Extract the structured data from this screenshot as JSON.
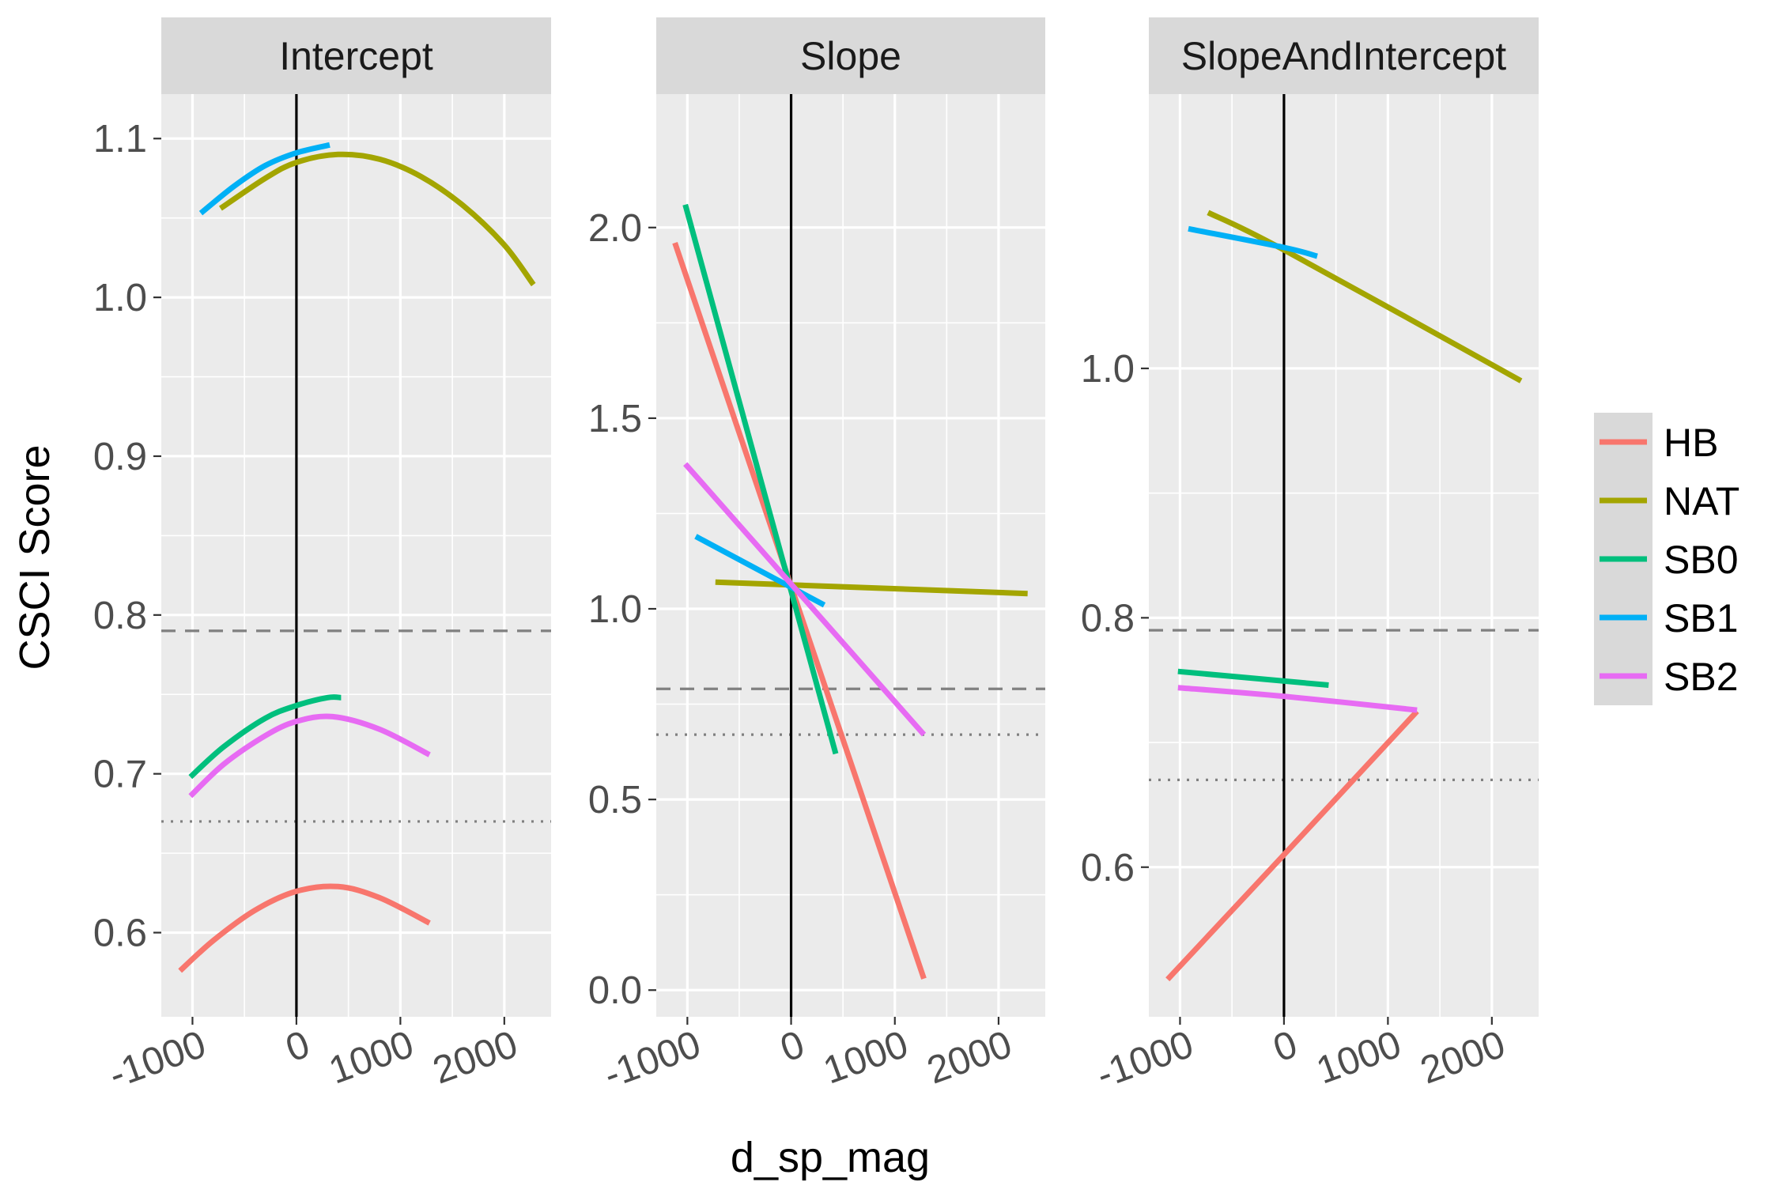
{
  "chart_data": {
    "type": "line",
    "xlabel": "d_sp_mag",
    "ylabel": "CSCI Score",
    "grid": true,
    "legend_position": "right",
    "x_ticks": [
      -1000,
      0,
      1000,
      2000
    ],
    "x_tick_labels": [
      "-1000",
      "0",
      "1000",
      "2000"
    ],
    "legend": [
      {
        "name": "HB",
        "color": "#F8766D"
      },
      {
        "name": "NAT",
        "color": "#A3A500"
      },
      {
        "name": "SB0",
        "color": "#00BF7D"
      },
      {
        "name": "SB1",
        "color": "#00B0F6"
      },
      {
        "name": "SB2",
        "color": "#E76BF3"
      }
    ],
    "reference_lines": {
      "vertical_x": 0,
      "dashed_y": 0.79,
      "dotted_y": 0.67
    },
    "panels": [
      {
        "title": "Intercept",
        "xlim": [
          -1300,
          2450
        ],
        "ylim": [
          0.547,
          1.128
        ],
        "y_ticks": [
          0.6,
          0.7,
          0.8,
          0.9,
          1.0,
          1.1
        ],
        "y_tick_labels": [
          "0.6",
          "0.7",
          "0.8",
          "0.9",
          "1.0",
          "1.1"
        ],
        "series": [
          {
            "name": "HB",
            "x": [
              -1120,
              -800,
              -400,
              0,
              400,
              800,
              1280
            ],
            "y": [
              0.576,
              0.595,
              0.614,
              0.626,
              0.629,
              0.622,
              0.606
            ]
          },
          {
            "name": "NAT",
            "x": [
              -730,
              -300,
              0,
              400,
              800,
              1200,
              1600,
              2000,
              2280
            ],
            "y": [
              1.056,
              1.075,
              1.085,
              1.09,
              1.087,
              1.076,
              1.058,
              1.033,
              1.008
            ]
          },
          {
            "name": "SB0",
            "x": [
              -1020,
              -700,
              -300,
              0,
              300,
              430
            ],
            "y": [
              0.698,
              0.717,
              0.735,
              0.743,
              0.748,
              0.748
            ]
          },
          {
            "name": "SB1",
            "x": [
              -920,
              -600,
              -300,
              0,
              320
            ],
            "y": [
              1.053,
              1.07,
              1.083,
              1.091,
              1.096
            ]
          },
          {
            "name": "SB2",
            "x": [
              -1020,
              -700,
              -300,
              0,
              350,
              800,
              1280
            ],
            "y": [
              0.686,
              0.706,
              0.724,
              0.733,
              0.736,
              0.728,
              0.712
            ]
          }
        ]
      },
      {
        "title": "Slope",
        "xlim": [
          -1300,
          2450
        ],
        "ylim": [
          -0.07,
          2.35
        ],
        "y_ticks": [
          0.0,
          0.5,
          1.0,
          1.5,
          2.0
        ],
        "y_tick_labels": [
          "0.0",
          "0.5",
          "1.0",
          "1.5",
          "2.0"
        ],
        "series": [
          {
            "name": "HB",
            "x": [
              -1120,
              1280
            ],
            "y": [
              1.96,
              0.03
            ]
          },
          {
            "name": "NAT",
            "x": [
              -730,
              2280
            ],
            "y": [
              1.07,
              1.04
            ]
          },
          {
            "name": "SB0",
            "x": [
              -1020,
              430
            ],
            "y": [
              2.06,
              0.62
            ]
          },
          {
            "name": "SB1",
            "x": [
              -920,
              320
            ],
            "y": [
              1.19,
              1.01
            ]
          },
          {
            "name": "SB2",
            "x": [
              -1020,
              1280
            ],
            "y": [
              1.38,
              0.67
            ]
          }
        ]
      },
      {
        "title": "SlopeAndIntercept",
        "xlim": [
          -1300,
          2450
        ],
        "ylim": [
          0.48,
          1.22
        ],
        "y_ticks": [
          0.6,
          0.8,
          1.0
        ],
        "y_tick_labels": [
          "0.6",
          "0.8",
          "1.0"
        ],
        "series": [
          {
            "name": "HB",
            "x": [
              -1120,
              0,
              1280
            ],
            "y": [
              0.51,
              0.61,
              0.725
            ]
          },
          {
            "name": "NAT",
            "x": [
              -730,
              0,
              2280
            ],
            "y": [
              1.125,
              1.095,
              0.99
            ]
          },
          {
            "name": "SB0",
            "x": [
              -1020,
              430
            ],
            "y": [
              0.757,
              0.746
            ]
          },
          {
            "name": "SB1",
            "x": [
              -920,
              0,
              320
            ],
            "y": [
              1.112,
              1.097,
              1.09
            ]
          },
          {
            "name": "SB2",
            "x": [
              -1020,
              0,
              1280
            ],
            "y": [
              0.744,
              0.737,
              0.726
            ]
          }
        ]
      }
    ]
  }
}
